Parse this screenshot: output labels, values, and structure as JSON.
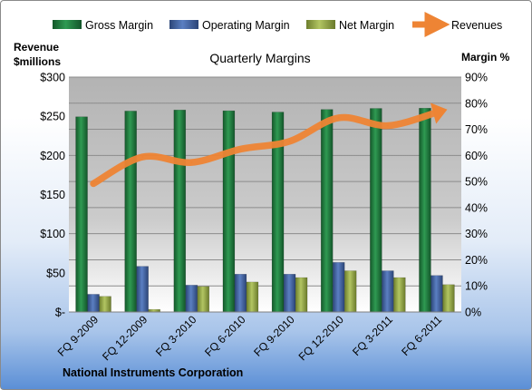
{
  "chart_data": {
    "type": "bar",
    "title": "Quarterly Margins",
    "footer": "National Instruments Corporation",
    "left_axis_label_line1": "Revenue",
    "left_axis_label_line2": "$millions",
    "right_axis_label": "Margin %",
    "left_ticks": [
      "$-",
      "$50",
      "$100",
      "$150",
      "$200",
      "$250",
      "$300"
    ],
    "right_ticks": [
      "0%",
      "10%",
      "20%",
      "30%",
      "40%",
      "50%",
      "60%",
      "70%",
      "80%",
      "90%"
    ],
    "left_ylim": [
      0,
      300
    ],
    "right_ylim": [
      0,
      90
    ],
    "categories": [
      "FQ 9-2009",
      "FQ 12-2009",
      "FQ 3-2010",
      "FQ 6-2010",
      "FQ 9-2010",
      "FQ 12-2010",
      "FQ 3-2011",
      "FQ 6-2011"
    ],
    "series": [
      {
        "name": "Gross Margin",
        "axis": "right",
        "kind": "bar",
        "color": "#1e7a3c",
        "values": [
          74.8,
          77.0,
          77.4,
          77.1,
          76.6,
          77.6,
          78.0,
          78.1
        ]
      },
      {
        "name": "Operating Margin",
        "axis": "right",
        "kind": "bar",
        "color": "#3e5f9e",
        "values": [
          6.8,
          17.5,
          10.3,
          14.5,
          14.5,
          19.0,
          15.8,
          14.0
        ]
      },
      {
        "name": "Net Margin",
        "axis": "right",
        "kind": "bar",
        "color": "#93a848",
        "values": [
          6.0,
          1.0,
          9.8,
          11.5,
          13.2,
          15.8,
          13.2,
          10.5
        ]
      },
      {
        "name": "Revenues",
        "axis": "left",
        "kind": "line",
        "color": "#ee8434",
        "values": [
          164,
          198,
          191,
          208,
          218,
          248,
          238,
          255
        ]
      }
    ],
    "grid": true,
    "legend": "top"
  }
}
